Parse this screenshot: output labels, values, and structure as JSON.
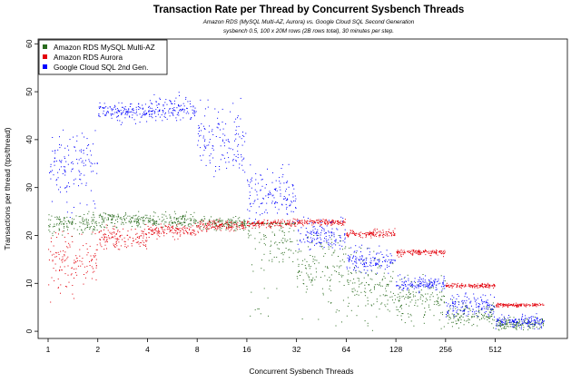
{
  "chart_data": {
    "type": "scatter",
    "title": "Transaction Rate per Thread by Concurrent Sysbench Threads",
    "subtitle": "Amazon RDS (MySQL Multi-AZ, Aurora) vs. Google Cloud SQL Second Generation",
    "caption": "sysbench 0.5, 100 x 20M rows (2B rows total), 30 minutes per step.",
    "xlabel": "Concurrent Sysbench Threads",
    "ylabel": "Transactions per thread (tps/thread)",
    "x_scale": "log2",
    "x_ticks": [
      "1",
      "2",
      "4",
      "8",
      "16",
      "32",
      "64",
      "128",
      "256",
      "512"
    ],
    "x_tick_values": [
      1,
      2,
      4,
      8,
      16,
      32,
      64,
      128,
      256,
      512
    ],
    "xlim": [
      0.87,
      1400
    ],
    "y_ticks": [
      "0",
      "10",
      "20",
      "30",
      "40",
      "50",
      "60"
    ],
    "y_tick_values": [
      0,
      10,
      20,
      30,
      40,
      50,
      60
    ],
    "ylim": [
      -1.5,
      61
    ],
    "legend_position": "top-left",
    "series": [
      {
        "name": "Amazon RDS MySQL Multi-AZ",
        "color": "#2a6b1e",
        "steps": [
          {
            "threads": 1,
            "center": 22.5,
            "low": 19.5,
            "high": 25.0
          },
          {
            "threads": 2,
            "center": 23.5,
            "low": 21.5,
            "high": 25.0
          },
          {
            "threads": 4,
            "center": 23.0,
            "low": 21.5,
            "high": 25.0
          },
          {
            "threads": 8,
            "center": 22.5,
            "low": 21.0,
            "high": 24.0
          },
          {
            "threads": 16,
            "center": 21.0,
            "low": 2.0,
            "high": 22.5
          },
          {
            "threads": 32,
            "center": 14.0,
            "low": 0.0,
            "high": 20.0
          },
          {
            "threads": 64,
            "center": 9.0,
            "low": 0.0,
            "high": 18.0
          },
          {
            "threads": 128,
            "center": 6.5,
            "low": 0.5,
            "high": 12.0
          },
          {
            "threads": 256,
            "center": 3.5,
            "low": 0.3,
            "high": 7.0
          },
          {
            "threads": 512,
            "center": 1.5,
            "low": 0.2,
            "high": 3.0
          }
        ]
      },
      {
        "name": "Amazon RDS Aurora",
        "color": "#e3000b",
        "steps": [
          {
            "threads": 1,
            "center": 14.0,
            "low": 6.0,
            "high": 21.0
          },
          {
            "threads": 2,
            "center": 19.5,
            "low": 17.0,
            "high": 22.5
          },
          {
            "threads": 4,
            "center": 21.0,
            "low": 19.0,
            "high": 22.5
          },
          {
            "threads": 8,
            "center": 22.0,
            "low": 20.5,
            "high": 23.5
          },
          {
            "threads": 16,
            "center": 22.5,
            "low": 21.5,
            "high": 23.5
          },
          {
            "threads": 32,
            "center": 22.8,
            "low": 22.0,
            "high": 23.5
          },
          {
            "threads": 64,
            "center": 20.3,
            "low": 19.5,
            "high": 21.5
          },
          {
            "threads": 128,
            "center": 16.5,
            "low": 15.5,
            "high": 17.0
          },
          {
            "threads": 256,
            "center": 9.5,
            "low": 9.0,
            "high": 10.0
          },
          {
            "threads": 512,
            "center": 5.5,
            "low": 5.0,
            "high": 6.0
          }
        ]
      },
      {
        "name": "Google Cloud SQL 2nd Gen.",
        "color": "#0000ff",
        "steps": [
          {
            "threads": 1,
            "center": 35.0,
            "low": 23.0,
            "high": 42.0
          },
          {
            "threads": 2,
            "center": 46.0,
            "low": 43.0,
            "high": 48.0
          },
          {
            "threads": 4,
            "center": 46.0,
            "low": 44.0,
            "high": 50.0
          },
          {
            "threads": 8,
            "center": 40.0,
            "low": 32.0,
            "high": 49.0
          },
          {
            "threads": 16,
            "center": 28.0,
            "low": 22.0,
            "high": 35.0
          },
          {
            "threads": 32,
            "center": 20.0,
            "low": 17.0,
            "high": 24.0
          },
          {
            "threads": 64,
            "center": 14.5,
            "low": 12.0,
            "high": 18.0
          },
          {
            "threads": 128,
            "center": 10.0,
            "low": 8.0,
            "high": 12.0
          },
          {
            "threads": 256,
            "center": 5.5,
            "low": 3.0,
            "high": 8.0
          },
          {
            "threads": 512,
            "center": 2.0,
            "low": 0.5,
            "high": 4.0
          }
        ]
      }
    ]
  }
}
